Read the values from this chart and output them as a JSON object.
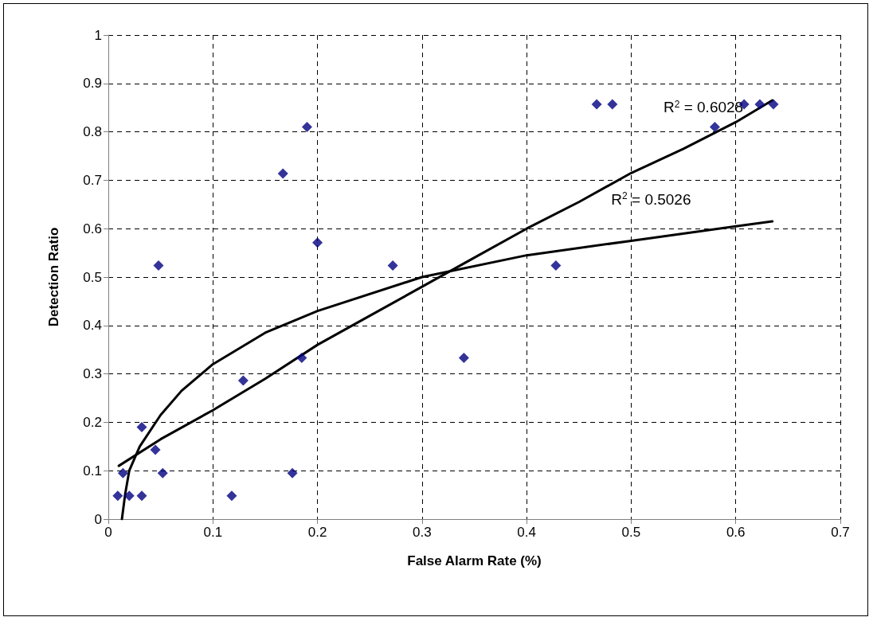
{
  "chart_data": {
    "type": "scatter",
    "xlabel": "False Alarm Rate (%)",
    "ylabel": "Detection Ratio",
    "xlim": [
      0,
      0.7
    ],
    "xticks": [
      0,
      0.1,
      0.2,
      0.3,
      0.4,
      0.5,
      0.6,
      0.7
    ],
    "ylim": [
      0,
      1
    ],
    "yticks": [
      0,
      0.1,
      0.2,
      0.3,
      0.4,
      0.5,
      0.6,
      0.7,
      0.8,
      0.9,
      1
    ],
    "grid": true,
    "marker": "diamond",
    "series": [
      {
        "color": "#000080",
        "x": [
          0.009,
          0.014,
          0.02,
          0.032,
          0.032,
          0.045,
          0.048,
          0.052,
          0.118,
          0.129,
          0.167,
          0.176,
          0.185,
          0.19,
          0.2,
          0.272,
          0.34,
          0.428,
          0.467,
          0.482,
          0.58,
          0.608,
          0.623,
          0.636
        ],
        "values": [
          0.048,
          0.095,
          0.048,
          0.19,
          0.048,
          0.143,
          0.524,
          0.095,
          0.048,
          0.286,
          0.714,
          0.095,
          0.333,
          0.81,
          0.571,
          0.524,
          0.333,
          0.524,
          0.857,
          0.857,
          0.81,
          0.857,
          0.857,
          0.857
        ]
      },
      {
        "type": "line",
        "color": "#000000",
        "marker": "none",
        "line_style": "solid",
        "x": [
          0.01,
          0.05,
          0.1,
          0.15,
          0.2,
          0.25,
          0.3,
          0.35,
          0.4,
          0.45,
          0.5,
          0.55,
          0.6,
          0.635
        ],
        "values": [
          0.11,
          0.165,
          0.225,
          0.29,
          0.36,
          0.42,
          0.48,
          0.54,
          0.6,
          0.655,
          0.715,
          0.765,
          0.82,
          0.865
        ]
      },
      {
        "type": "line",
        "color": "#000000",
        "marker": "none",
        "line_style": "solid",
        "x": [
          0.013,
          0.016,
          0.02,
          0.03,
          0.05,
          0.07,
          0.1,
          0.15,
          0.2,
          0.3,
          0.4,
          0.5,
          0.6,
          0.635
        ],
        "values": [
          0,
          0.05,
          0.1,
          0.15,
          0.215,
          0.265,
          0.32,
          0.385,
          0.43,
          0.5,
          0.545,
          0.575,
          0.605,
          0.615
        ]
      }
    ],
    "annotations": [
      "R$^{2}$ = 0.6028",
      "R$^{2}$ = 0.5026"
    ]
  }
}
